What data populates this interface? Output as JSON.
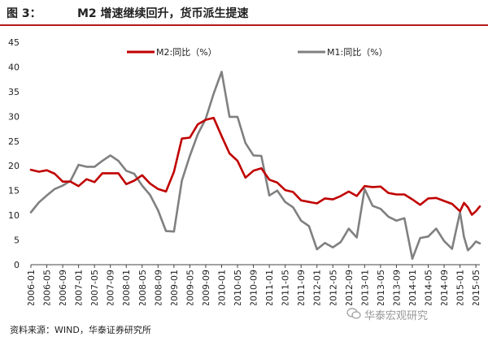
{
  "header": {
    "fig_label": "图 3：",
    "title": "M2 增速继续回升，货币派生提速"
  },
  "footer": {
    "source": "资料来源：WIND，华泰证券研究所",
    "watermark": "华泰宏观研究"
  },
  "colors": {
    "m2": "#c00000",
    "m1": "#808080",
    "header_rule": "#b51b1b"
  },
  "chart_data": {
    "type": "line",
    "xlabel": "",
    "ylabel": "",
    "ylim": [
      0,
      45
    ],
    "yticks": [
      0,
      5,
      10,
      15,
      20,
      25,
      30,
      35,
      40,
      45
    ],
    "grid": false,
    "legend_placement": "top",
    "x_tick_labels": [
      "2006-01",
      "2006-05",
      "2006-09",
      "2007-01",
      "2007-05",
      "2007-09",
      "2008-01",
      "2008-05",
      "2008-09",
      "2009-01",
      "2009-05",
      "2009-09",
      "2010-01",
      "2010-05",
      "2010-09",
      "2011-01",
      "2011-05",
      "2011-09",
      "2012-01",
      "2012-05",
      "2012-09",
      "2013-01",
      "2013-05",
      "2013-09",
      "2014-01",
      "2014-05",
      "2014-09",
      "2015-01",
      "2015-05"
    ],
    "series": [
      {
        "name": "M2:同比（%）",
        "color": "#c00000",
        "points": [
          [
            "2006-01",
            19.2
          ],
          [
            "2006-03",
            18.8
          ],
          [
            "2006-05",
            19.1
          ],
          [
            "2006-07",
            18.4
          ],
          [
            "2006-09",
            16.8
          ],
          [
            "2006-11",
            16.8
          ],
          [
            "2007-01",
            15.9
          ],
          [
            "2007-03",
            17.3
          ],
          [
            "2007-05",
            16.7
          ],
          [
            "2007-07",
            18.5
          ],
          [
            "2007-09",
            18.5
          ],
          [
            "2007-11",
            18.5
          ],
          [
            "2008-01",
            16.3
          ],
          [
            "2008-03",
            17.0
          ],
          [
            "2008-05",
            18.1
          ],
          [
            "2008-07",
            16.4
          ],
          [
            "2008-09",
            15.3
          ],
          [
            "2008-11",
            14.8
          ],
          [
            "2009-01",
            18.8
          ],
          [
            "2009-03",
            25.5
          ],
          [
            "2009-05",
            25.7
          ],
          [
            "2009-07",
            28.4
          ],
          [
            "2009-09",
            29.3
          ],
          [
            "2009-11",
            29.7
          ],
          [
            "2010-01",
            26.0
          ],
          [
            "2010-03",
            22.5
          ],
          [
            "2010-05",
            21.0
          ],
          [
            "2010-07",
            17.6
          ],
          [
            "2010-09",
            19.0
          ],
          [
            "2010-11",
            19.5
          ],
          [
            "2011-01",
            17.2
          ],
          [
            "2011-03",
            16.6
          ],
          [
            "2011-05",
            15.1
          ],
          [
            "2011-07",
            14.7
          ],
          [
            "2011-09",
            13.0
          ],
          [
            "2011-11",
            12.7
          ],
          [
            "2012-01",
            12.4
          ],
          [
            "2012-03",
            13.4
          ],
          [
            "2012-05",
            13.2
          ],
          [
            "2012-07",
            13.9
          ],
          [
            "2012-09",
            14.8
          ],
          [
            "2012-11",
            13.9
          ],
          [
            "2013-01",
            15.9
          ],
          [
            "2013-03",
            15.7
          ],
          [
            "2013-05",
            15.8
          ],
          [
            "2013-07",
            14.5
          ],
          [
            "2013-09",
            14.2
          ],
          [
            "2013-11",
            14.2
          ],
          [
            "2014-01",
            13.2
          ],
          [
            "2014-03",
            12.1
          ],
          [
            "2014-05",
            13.4
          ],
          [
            "2014-07",
            13.5
          ],
          [
            "2014-09",
            12.9
          ],
          [
            "2014-11",
            12.3
          ],
          [
            "2015-01",
            10.8
          ],
          [
            "2015-02",
            12.5
          ],
          [
            "2015-03",
            11.6
          ],
          [
            "2015-04",
            10.1
          ],
          [
            "2015-05",
            10.8
          ],
          [
            "2015-06",
            11.8
          ]
        ]
      },
      {
        "name": "M1:同比（%）",
        "color": "#808080",
        "points": [
          [
            "2006-01",
            10.6
          ],
          [
            "2006-03",
            12.6
          ],
          [
            "2006-05",
            14.0
          ],
          [
            "2006-07",
            15.3
          ],
          [
            "2006-09",
            16.0
          ],
          [
            "2006-11",
            17.0
          ],
          [
            "2007-01",
            20.2
          ],
          [
            "2007-03",
            19.8
          ],
          [
            "2007-05",
            19.8
          ],
          [
            "2007-07",
            21.0
          ],
          [
            "2007-09",
            22.1
          ],
          [
            "2007-11",
            21.0
          ],
          [
            "2008-01",
            19.0
          ],
          [
            "2008-03",
            18.4
          ],
          [
            "2008-05",
            16.0
          ],
          [
            "2008-07",
            14.1
          ],
          [
            "2008-09",
            11.0
          ],
          [
            "2008-11",
            6.8
          ],
          [
            "2009-01",
            6.7
          ],
          [
            "2009-03",
            17.0
          ],
          [
            "2009-05",
            22.0
          ],
          [
            "2009-07",
            26.4
          ],
          [
            "2009-09",
            29.5
          ],
          [
            "2009-11",
            34.6
          ],
          [
            "2010-01",
            39.0
          ],
          [
            "2010-03",
            29.9
          ],
          [
            "2010-05",
            29.9
          ],
          [
            "2010-07",
            24.6
          ],
          [
            "2010-09",
            22.1
          ],
          [
            "2010-11",
            22.0
          ],
          [
            "2011-01",
            14.0
          ],
          [
            "2011-03",
            15.0
          ],
          [
            "2011-05",
            12.7
          ],
          [
            "2011-07",
            11.6
          ],
          [
            "2011-09",
            8.9
          ],
          [
            "2011-11",
            7.8
          ],
          [
            "2012-01",
            3.1
          ],
          [
            "2012-03",
            4.4
          ],
          [
            "2012-05",
            3.5
          ],
          [
            "2012-07",
            4.6
          ],
          [
            "2012-09",
            7.3
          ],
          [
            "2012-11",
            5.5
          ],
          [
            "2013-01",
            15.3
          ],
          [
            "2013-03",
            11.9
          ],
          [
            "2013-05",
            11.3
          ],
          [
            "2013-07",
            9.7
          ],
          [
            "2013-09",
            8.9
          ],
          [
            "2013-11",
            9.4
          ],
          [
            "2014-01",
            1.2
          ],
          [
            "2014-03",
            5.4
          ],
          [
            "2014-05",
            5.7
          ],
          [
            "2014-07",
            7.3
          ],
          [
            "2014-09",
            4.8
          ],
          [
            "2014-11",
            3.2
          ],
          [
            "2015-01",
            10.6
          ],
          [
            "2015-02",
            5.6
          ],
          [
            "2015-03",
            2.9
          ],
          [
            "2015-04",
            3.7
          ],
          [
            "2015-05",
            4.7
          ],
          [
            "2015-06",
            4.3
          ]
        ]
      }
    ]
  }
}
